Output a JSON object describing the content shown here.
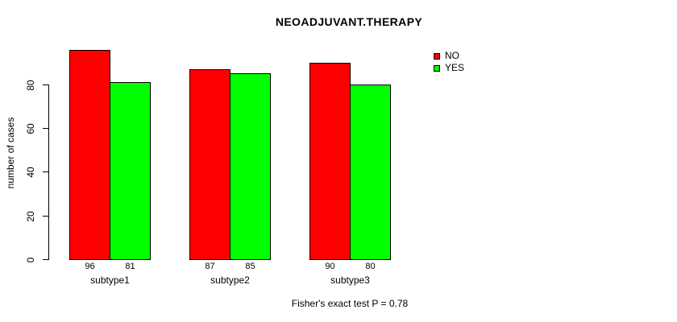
{
  "title": "NEOADJUVANT.THERAPY",
  "y_axis_label": "number of cases",
  "footer": "Fisher's exact test P = 0.78",
  "colors": {
    "no": "#FF0000",
    "yes": "#00FF00",
    "axis": "#000000",
    "text": "#000000",
    "background": "#FFFFFF"
  },
  "legend": {
    "position": "top-right",
    "items": [
      {
        "label": "NO",
        "color": "#FF0000"
      },
      {
        "label": "YES",
        "color": "#00FF00"
      }
    ]
  },
  "chart_data": {
    "type": "bar",
    "title": "NEOADJUVANT.THERAPY",
    "xlabel": "",
    "ylabel": "number of cases",
    "categories": [
      "subtype1",
      "subtype2",
      "subtype3"
    ],
    "series": [
      {
        "name": "NO",
        "color": "#FF0000",
        "values": [
          96,
          87,
          90
        ]
      },
      {
        "name": "YES",
        "color": "#00FF00",
        "values": [
          81,
          85,
          80
        ]
      }
    ],
    "yticks": [
      0,
      20,
      40,
      60,
      80
    ],
    "ylim": [
      0,
      96.8
    ],
    "grid": false,
    "bar_outline": "#000000",
    "show_values": true,
    "legend_position": "top-right",
    "annotation": "Fisher's exact test P = 0.78"
  }
}
